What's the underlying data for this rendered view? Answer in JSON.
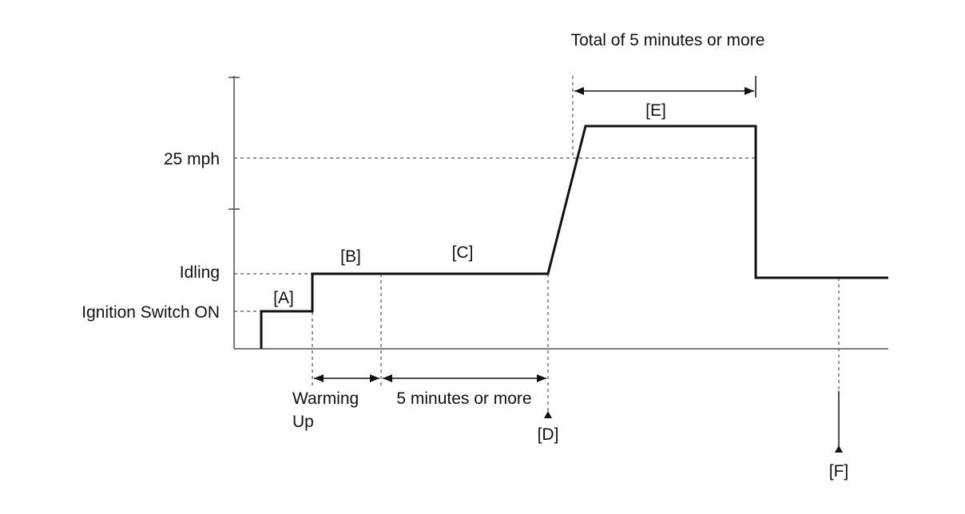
{
  "y_levels": {
    "speed": "25 mph",
    "idling": "Idling",
    "ignition": "Ignition Switch ON"
  },
  "phases": {
    "a": "[A]",
    "b": "[B]",
    "c": "[C]",
    "d": "[D]",
    "e": "[E]",
    "f": "[F]"
  },
  "durations": {
    "warming_line1": "Warming",
    "warming_line2": "Up",
    "five_min": "5 minutes or more",
    "total": "Total of 5 minutes or more"
  }
}
